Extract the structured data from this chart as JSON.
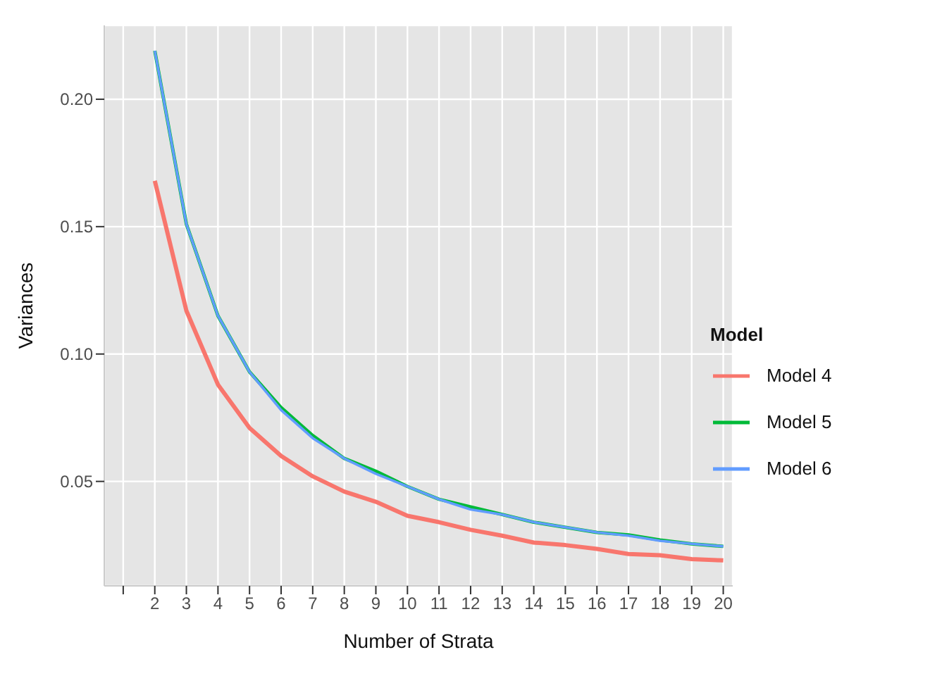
{
  "chart_data": {
    "type": "line",
    "xlabel": "Number of Strata",
    "ylabel": "Variances",
    "legend_title": "Model",
    "x": [
      2,
      3,
      4,
      5,
      6,
      7,
      8,
      9,
      10,
      11,
      12,
      13,
      14,
      15,
      16,
      17,
      18,
      19,
      20
    ],
    "series": [
      {
        "name": "Model 4",
        "color": "#f8766d",
        "values": [
          0.168,
          0.117,
          0.088,
          0.071,
          0.06,
          0.052,
          0.046,
          0.042,
          0.0365,
          0.034,
          0.031,
          0.0287,
          0.026,
          0.025,
          0.0235,
          0.0215,
          0.021,
          0.0195,
          0.019
        ]
      },
      {
        "name": "Model 5",
        "color": "#00ba38",
        "values": [
          0.219,
          0.151,
          0.115,
          0.093,
          0.079,
          0.068,
          0.059,
          0.054,
          0.048,
          0.043,
          0.04,
          0.037,
          0.034,
          0.032,
          0.03,
          0.029,
          0.027,
          0.0255,
          0.0245
        ]
      },
      {
        "name": "Model 6",
        "color": "#619cff",
        "values": [
          0.219,
          0.151,
          0.115,
          0.093,
          0.078,
          0.067,
          0.059,
          0.053,
          0.048,
          0.043,
          0.039,
          0.037,
          0.034,
          0.032,
          0.03,
          0.0287,
          0.0267,
          0.0255,
          0.0245
        ]
      }
    ],
    "xlim": [
      0.4,
      20.3
    ],
    "ylim": [
      0.009,
      0.229
    ],
    "xticks": [
      {
        "value": 1,
        "label": null
      },
      2,
      3,
      4,
      5,
      6,
      7,
      8,
      9,
      10,
      11,
      12,
      13,
      14,
      15,
      16,
      17,
      18,
      19,
      20
    ],
    "yticks": [
      {
        "value": 0.05,
        "label": "0.05"
      },
      {
        "value": 0.1,
        "label": "0.10"
      },
      {
        "value": 0.15,
        "label": "0.15"
      },
      {
        "value": 0.2,
        "label": "0.20"
      }
    ],
    "grid": true,
    "legend": "right",
    "marker": "none",
    "line_style": "solid"
  }
}
